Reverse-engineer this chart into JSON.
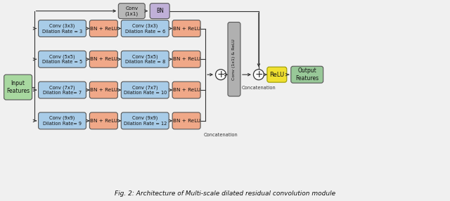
{
  "title": "Fig. 2: Architecture of Multi-scale dilated residual convolution module",
  "bg": "#f0f0f0",
  "c_input": "#a8d8a0",
  "c_output": "#98c898",
  "c_conv_blue": "#a8cce8",
  "c_bn_orange": "#f0a888",
  "c_conv_gray": "#b8b8b8",
  "c_bn_purple": "#c0b0d8",
  "c_rot_gray": "#b0b0b0",
  "c_relu": "#f0e030",
  "rows": [
    [
      "Conv (3x3)\nDilation Rate = 3",
      "BN + ReLU",
      "Conv (3x3)\nDilation Rate = 6",
      "BN + ReLU"
    ],
    [
      "Conv (5x5)\nDilation Rate = 5",
      "BN + ReLU",
      "Conv (5x5)\nDilation Rate = 8",
      "BN + ReLU"
    ],
    [
      "Conv (7x7)\nDilation Rate= 7",
      "BN + ReLU",
      "Conv (7x7)\nDilation Rate = 10",
      "BN + ReLU"
    ],
    [
      "Conv (9x9)\nDilation Rate= 9",
      "BN + ReLU",
      "Conv (9x9)\nDilation Rate = 12",
      "BN + ReLU"
    ]
  ],
  "input_label": "Input\nFeatures",
  "top_conv_label": "Conv\n(1x1)",
  "top_bn_label": "BN",
  "rot_label": "Conv (1x1) & ReLU",
  "relu_label": "ReLU",
  "output_label": "Output\nFeatures",
  "concat1_label": "Concatenation",
  "concat2_label": "Concatenation",
  "caption": "Fig. 2: Architecture of Multi-scale dilated residual convolution module"
}
